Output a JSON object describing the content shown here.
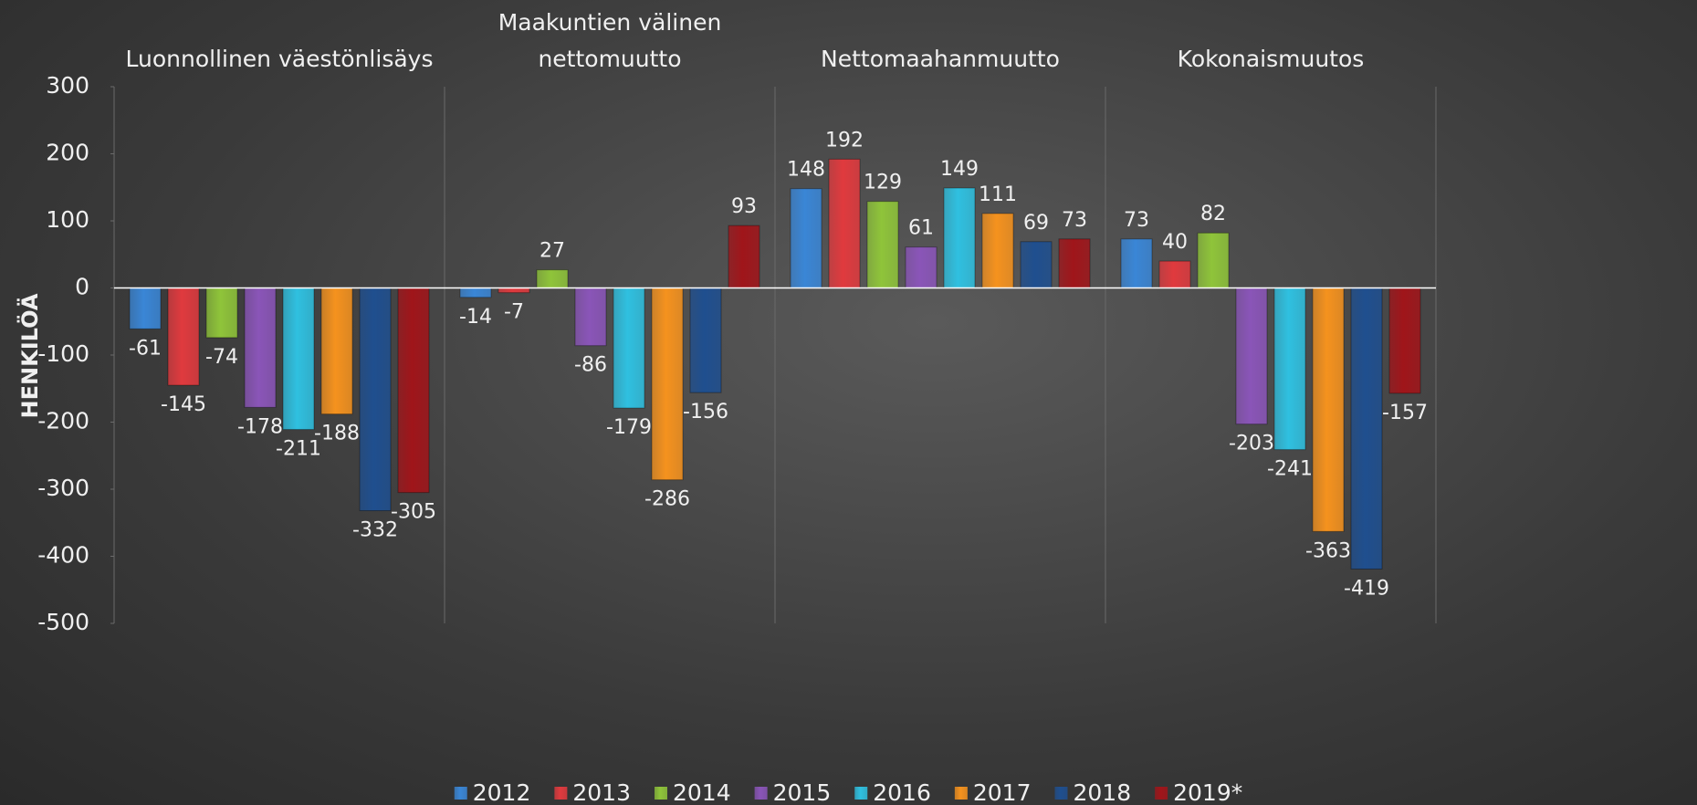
{
  "chart_data": {
    "type": "bar",
    "ylabel": "HENKILÖÄ",
    "categories": [
      "Luonnollinen väestönlisäys",
      "Maakuntien välinen nettomuutto",
      "Nettomaahanmuutto",
      "Kokonaismuutos"
    ],
    "series": [
      {
        "name": "2012",
        "color": "#3a86d6",
        "values": [
          -61,
          -14,
          148,
          73
        ]
      },
      {
        "name": "2013",
        "color": "#e03a3e",
        "values": [
          -145,
          -7,
          192,
          40
        ]
      },
      {
        "name": "2014",
        "color": "#8fc43a",
        "values": [
          -74,
          27,
          129,
          82
        ]
      },
      {
        "name": "2015",
        "color": "#8a55b8",
        "values": [
          -178,
          -86,
          61,
          -203
        ]
      },
      {
        "name": "2016",
        "color": "#2fc0e0",
        "values": [
          -211,
          -179,
          149,
          -241
        ]
      },
      {
        "name": "2017",
        "color": "#f5921e",
        "values": [
          -188,
          -286,
          111,
          -363
        ]
      },
      {
        "name": "2018",
        "color": "#1f4f8f",
        "values": [
          -332,
          -156,
          69,
          -419
        ]
      },
      {
        "name": "2019*",
        "color": "#a0151a",
        "values": [
          -305,
          93,
          73,
          -157
        ]
      }
    ],
    "ylim": [
      -500,
      300
    ],
    "yticks": [
      -500,
      -400,
      -300,
      -200,
      -100,
      0,
      100,
      200,
      300
    ],
    "legend": "bottom"
  }
}
